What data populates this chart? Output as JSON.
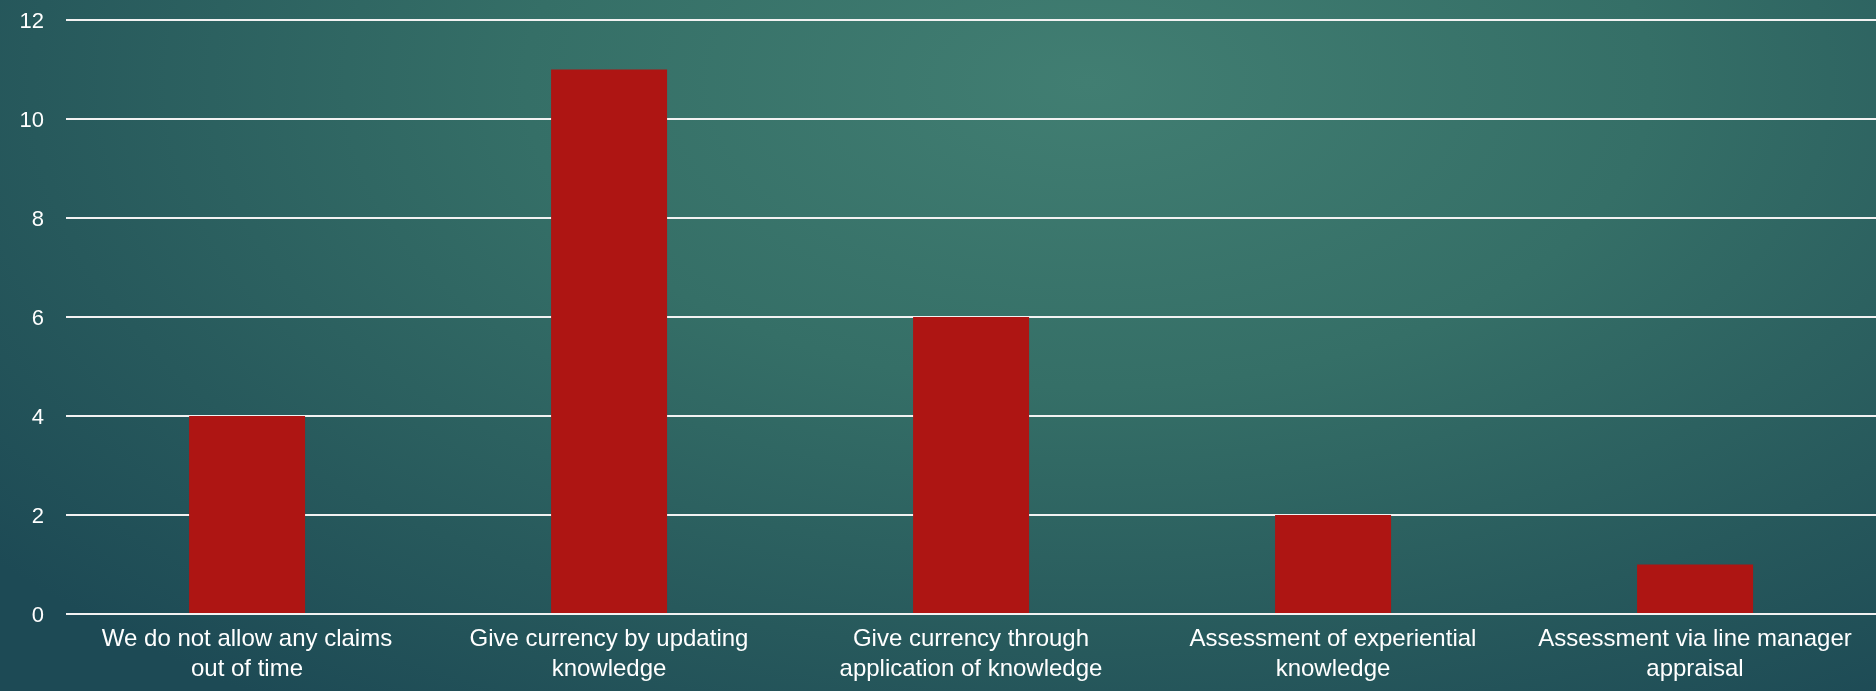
{
  "chart_data": {
    "type": "bar",
    "categories": [
      "We do not allow any claims out of time",
      "Give currency by updating knowledge",
      "Give currency through application of knowledge",
      "Assessment of experiential knowledge",
      "Assessment via line manager appraisal"
    ],
    "values": [
      4,
      11,
      6,
      2,
      1
    ],
    "color": "#ae1513",
    "ylim": [
      0,
      12
    ],
    "yticks": [
      0,
      2,
      4,
      6,
      8,
      10,
      12
    ],
    "grid": "y"
  }
}
